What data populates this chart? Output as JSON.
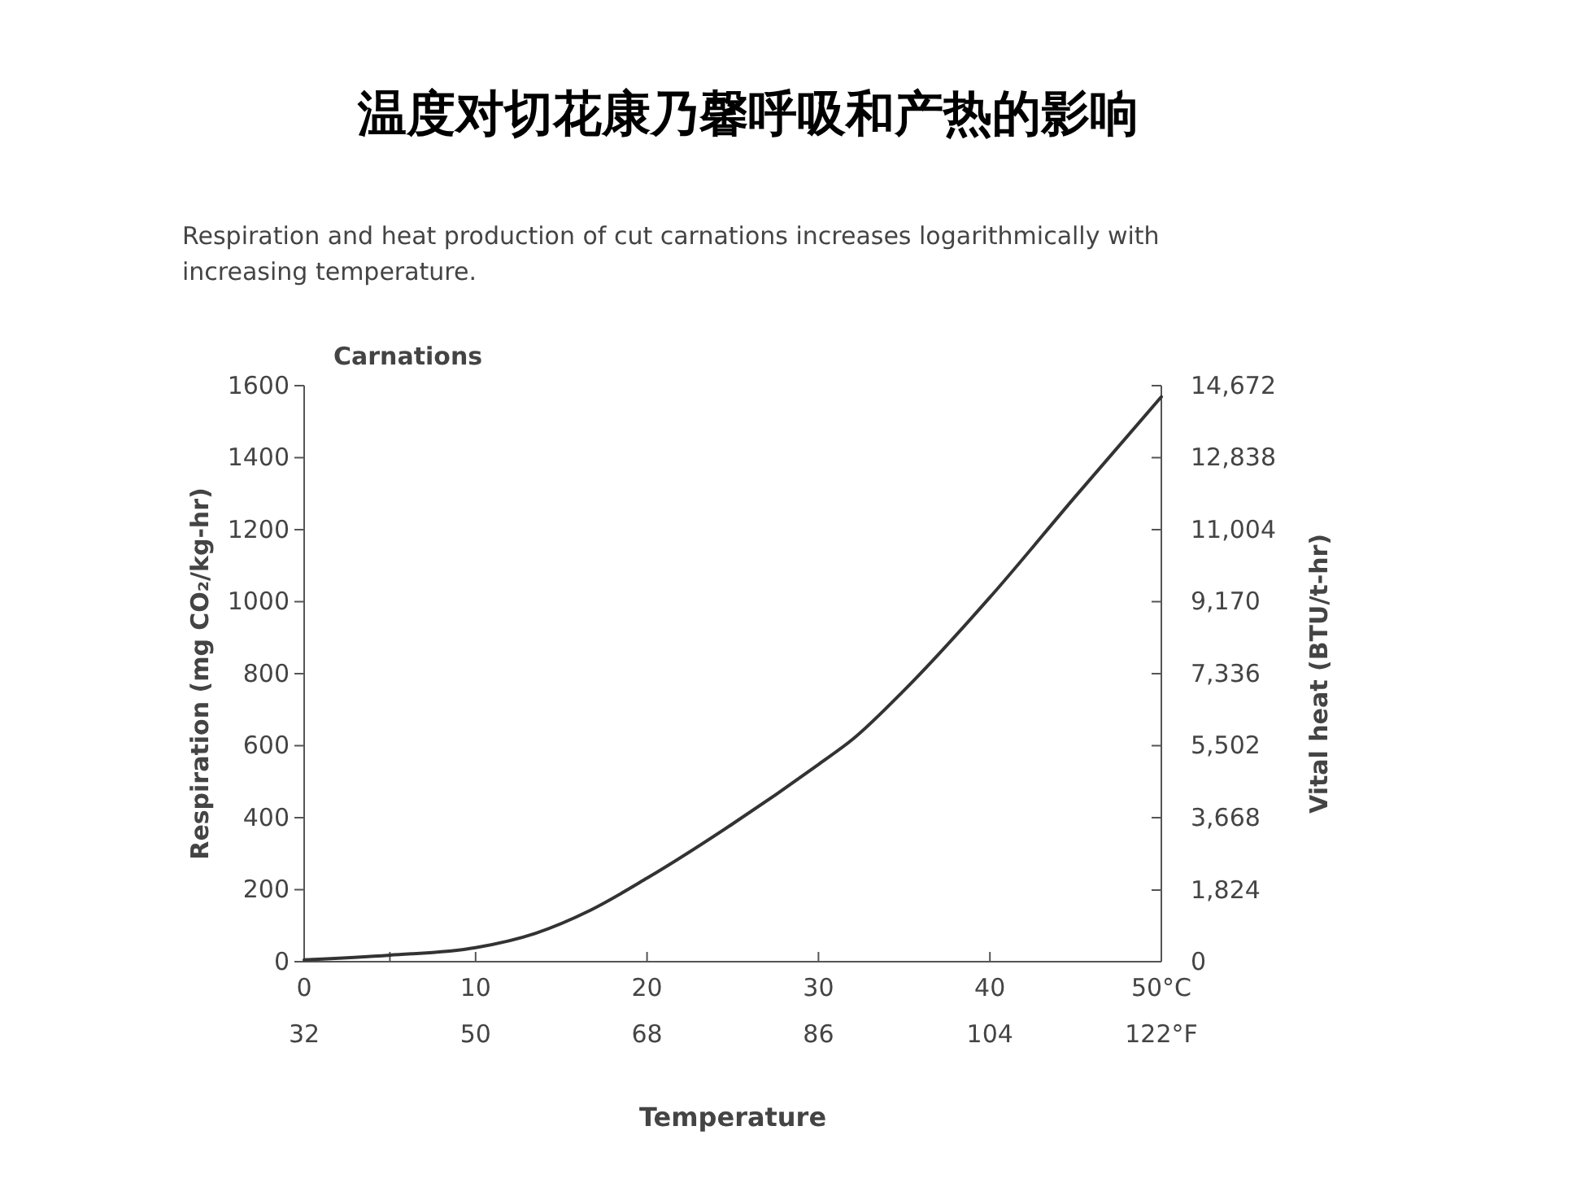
{
  "chart_data": {
    "type": "line",
    "title": "温度对切花康乃馨呼吸和产热的影响",
    "subtitle": "Respiration and heat production of cut carnations increases logarithmically with increasing temperature.",
    "annotations": [
      "Carnations"
    ],
    "xlabel": "Temperature",
    "ylabel": "Respiration (mg CO₂/kg-hr)",
    "y2label": "Vital heat (BTU/t-hr)",
    "x": [
      0,
      5,
      10,
      13.5,
      16.7,
      20,
      25,
      30,
      32,
      35,
      40,
      45,
      50
    ],
    "series": [
      {
        "color": "#333333",
        "values": [
          5,
          18,
          39,
          79,
          143,
          232,
          383,
          548,
          618,
          754,
          1012,
          1293,
          1569
        ]
      }
    ],
    "xlim": [
      0,
      50
    ],
    "xticks": [
      0,
      {
        "value": 5,
        "label": null
      },
      10,
      20,
      30,
      40,
      {
        "value": 50,
        "label": "50°C"
      }
    ],
    "x2lim": [
      32,
      122
    ],
    "x2ticks": [
      32,
      50,
      68,
      86,
      104,
      {
        "value": 122,
        "label": "122°F"
      }
    ],
    "ylim": [
      0,
      1600
    ],
    "yticks": [
      0,
      200,
      400,
      600,
      800,
      1000,
      1200,
      1400,
      1600
    ],
    "y2lim": [
      0,
      14672
    ],
    "y2ticks": [
      0,
      {
        "value": 1824,
        "label": "1,824"
      },
      {
        "value": 3668,
        "label": "3,668"
      },
      {
        "value": 5502,
        "label": "5,502"
      },
      {
        "value": 7336,
        "label": "7,336"
      },
      {
        "value": 9170,
        "label": "9,170"
      },
      {
        "value": 11004,
        "label": "11,004"
      },
      {
        "value": 12838,
        "label": "12,838"
      },
      {
        "value": 14672,
        "label": "14,672"
      }
    ],
    "grid": false,
    "marker": "none",
    "line_style": "solid"
  }
}
